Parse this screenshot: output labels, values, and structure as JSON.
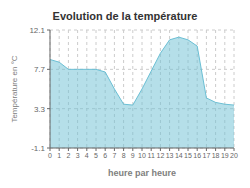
{
  "chart_data": {
    "type": "area",
    "title": "Evolution de la température",
    "x_label": "heure par heure",
    "y_label": "Température en °C",
    "x": [
      0,
      1,
      2,
      3,
      4,
      5,
      6,
      7,
      8,
      9,
      10,
      11,
      12,
      13,
      14,
      15,
      16,
      17,
      18,
      19,
      20
    ],
    "values": [
      8.8,
      8.5,
      7.7,
      7.7,
      7.7,
      7.7,
      7.4,
      5.5,
      3.8,
      3.7,
      5.5,
      7.5,
      9.5,
      11.0,
      11.3,
      11.0,
      10.3,
      4.5,
      4.0,
      3.8,
      3.7
    ],
    "color": "#6bbfd4",
    "xlim": [
      0,
      20
    ],
    "xticks": [
      0,
      1,
      2,
      3,
      4,
      5,
      6,
      7,
      8,
      9,
      10,
      11,
      12,
      13,
      14,
      15,
      16,
      17,
      18,
      19,
      20
    ],
    "ylim": [
      -1.1,
      12.1
    ],
    "yticks": [
      -1.1,
      3.3,
      7.7,
      12.1
    ],
    "grid": true
  }
}
